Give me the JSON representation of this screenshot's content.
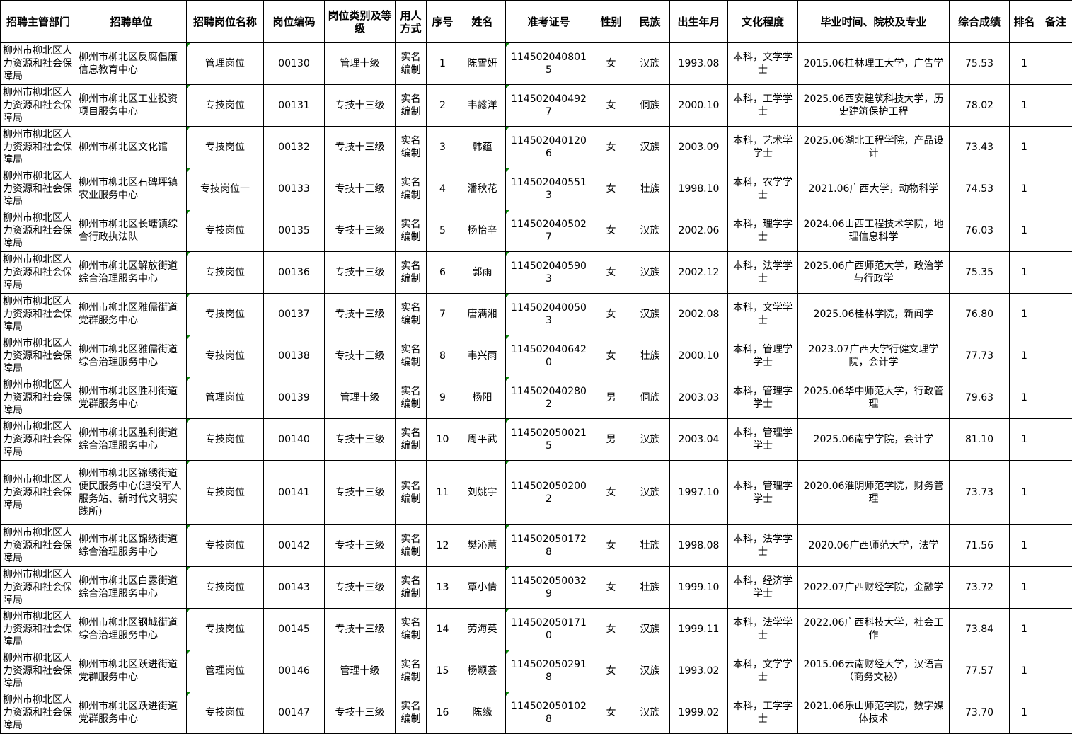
{
  "headers": [
    "招聘主管部门",
    "招聘单位",
    "招聘岗位名称",
    "岗位编码",
    "岗位类别及等级",
    "用人方式",
    "序号",
    "姓名",
    "准考证号",
    "性别",
    "民族",
    "出生年月",
    "文化程度",
    "毕业时间、院校及专业",
    "综合成绩",
    "排名",
    "备注"
  ],
  "rows": [
    [
      "柳州市柳北区人力资源和社会保障局",
      "柳州市柳北区反腐倡廉信息教育中心",
      "管理岗位",
      "00130",
      "管理十级",
      "实名编制",
      "1",
      "陈雪妍",
      "1145020408015",
      "女",
      "汉族",
      "1993.08",
      "本科，文学学士",
      "2015.06桂林理工大学，广告学",
      "75.53",
      "1",
      ""
    ],
    [
      "柳州市柳北区人力资源和社会保障局",
      "柳州市柳北区工业投资项目服务中心",
      "专技岗位",
      "00131",
      "专技十三级",
      "实名编制",
      "2",
      "韦懿洋",
      "1145020404927",
      "女",
      "侗族",
      "2000.10",
      "本科，工学学士",
      "2025.06西安建筑科技大学，历史建筑保护工程",
      "78.02",
      "1",
      ""
    ],
    [
      "柳州市柳北区人力资源和社会保障局",
      "柳州市柳北区文化馆",
      "专技岗位",
      "00132",
      "专技十三级",
      "实名编制",
      "3",
      "韩蕴",
      "1145020401206",
      "女",
      "汉族",
      "2003.09",
      "本科，艺术学学士",
      "2025.06湖北工程学院，产品设计",
      "73.43",
      "1",
      ""
    ],
    [
      "柳州市柳北区人力资源和社会保障局",
      "柳州市柳北区石碑坪镇农业服务中心",
      "专技岗位一",
      "00133",
      "专技十三级",
      "实名编制",
      "4",
      "潘秋花",
      "1145020405513",
      "女",
      "壮族",
      "1998.10",
      "本科，农学学士",
      "2021.06广西大学，动物科学",
      "74.53",
      "1",
      ""
    ],
    [
      "柳州市柳北区人力资源和社会保障局",
      "柳州市柳北区长塘镇综合行政执法队",
      "专技岗位",
      "00135",
      "专技十三级",
      "实名编制",
      "5",
      "杨怡辛",
      "1145020405027",
      "女",
      "汉族",
      "2002.06",
      "本科，理学学士",
      "2024.06山西工程技术学院，地理信息科学",
      "76.03",
      "1",
      ""
    ],
    [
      "柳州市柳北区人力资源和社会保障局",
      "柳州市柳北区解放街道综合治理服务中心",
      "专技岗位",
      "00136",
      "专技十三级",
      "实名编制",
      "6",
      "郭雨",
      "1145020405903",
      "女",
      "汉族",
      "2002.12",
      "本科，法学学士",
      "2025.06广西师范大学，政治学与行政学",
      "75.35",
      "1",
      ""
    ],
    [
      "柳州市柳北区人力资源和社会保障局",
      "柳州市柳北区雅儒街道党群服务中心",
      "专技岗位",
      "00137",
      "专技十三级",
      "实名编制",
      "7",
      "唐满湘",
      "1145020400503",
      "女",
      "汉族",
      "2002.08",
      "本科，文学学士",
      "2025.06桂林学院，新闻学",
      "76.80",
      "1",
      ""
    ],
    [
      "柳州市柳北区人力资源和社会保障局",
      "柳州市柳北区雅儒街道综合治理服务中心",
      "专技岗位",
      "00138",
      "专技十三级",
      "实名编制",
      "8",
      "韦兴雨",
      "1145020406420",
      "女",
      "壮族",
      "2000.10",
      "本科，管理学学士",
      "2023.07广西大学行健文理学院，会计学",
      "77.73",
      "1",
      ""
    ],
    [
      "柳州市柳北区人力资源和社会保障局",
      "柳州市柳北区胜利街道党群服务中心",
      "管理岗位",
      "00139",
      "管理十级",
      "实名编制",
      "9",
      "杨阳",
      "1145020402802",
      "男",
      "侗族",
      "2003.03",
      "本科，管理学学士",
      "2025.06华中师范大学，行政管理",
      "79.63",
      "1",
      ""
    ],
    [
      "柳州市柳北区人力资源和社会保障局",
      "柳州市柳北区胜利街道综合治理服务中心",
      "专技岗位",
      "00140",
      "专技十三级",
      "实名编制",
      "10",
      "周平武",
      "1145020500215",
      "男",
      "汉族",
      "2003.04",
      "本科，管理学学士",
      "2025.06南宁学院，会计学",
      "81.10",
      "1",
      ""
    ],
    [
      "柳州市柳北区人力资源和社会保障局",
      "柳州市柳北区锦绣街道便民服务中心(退役军人服务站、新时代文明实践所)",
      "专技岗位",
      "00141",
      "专技十三级",
      "实名编制",
      "11",
      "刘姚宇",
      "1145020502002",
      "女",
      "汉族",
      "1997.10",
      "本科，管理学学士",
      "2020.06淮阴师范学院，财务管理",
      "73.73",
      "1",
      ""
    ],
    [
      "柳州市柳北区人力资源和社会保障局",
      "柳州市柳北区锦绣街道综合治理服务中心",
      "专技岗位",
      "00142",
      "专技十三级",
      "实名编制",
      "12",
      "樊沁蕙",
      "1145020501728",
      "女",
      "壮族",
      "1998.08",
      "本科，法学学士",
      "2020.06广西师范大学，法学",
      "71.56",
      "1",
      ""
    ],
    [
      "柳州市柳北区人力资源和社会保障局",
      "柳州市柳北区白露街道综合治理服务中心",
      "专技岗位",
      "00143",
      "专技十三级",
      "实名编制",
      "13",
      "覃小倩",
      "1145020500329",
      "女",
      "壮族",
      "1999.10",
      "本科，经济学学士",
      "2022.07广西财经学院，金融学",
      "73.72",
      "1",
      ""
    ],
    [
      "柳州市柳北区人力资源和社会保障局",
      "柳州市柳北区钢城街道综合治理服务中心",
      "专技岗位",
      "00145",
      "专技十三级",
      "实名编制",
      "14",
      "劳海英",
      "1145020501710",
      "女",
      "汉族",
      "1999.11",
      "本科，法学学士",
      "2022.06广西科技大学，社会工作",
      "73.84",
      "1",
      ""
    ],
    [
      "柳州市柳北区人力资源和社会保障局",
      "柳州市柳北区跃进街道党群服务中心",
      "管理岗位",
      "00146",
      "管理十级",
      "实名编制",
      "15",
      "杨颖荟",
      "1145020502918",
      "女",
      "汉族",
      "1993.02",
      "本科，文学学士",
      "2015.06云南财经大学，汉语言（商务文秘）",
      "77.57",
      "1",
      ""
    ],
    [
      "柳州市柳北区人力资源和社会保障局",
      "柳州市柳北区跃进街道党群服务中心",
      "专技岗位",
      "00147",
      "专技十三级",
      "实名编制",
      "16",
      "陈缘",
      "1145020501028",
      "女",
      "汉族",
      "1999.02",
      "本科，工学学士",
      "2021.06乐山师范学院，数字媒体技术",
      "73.70",
      "1",
      ""
    ]
  ]
}
